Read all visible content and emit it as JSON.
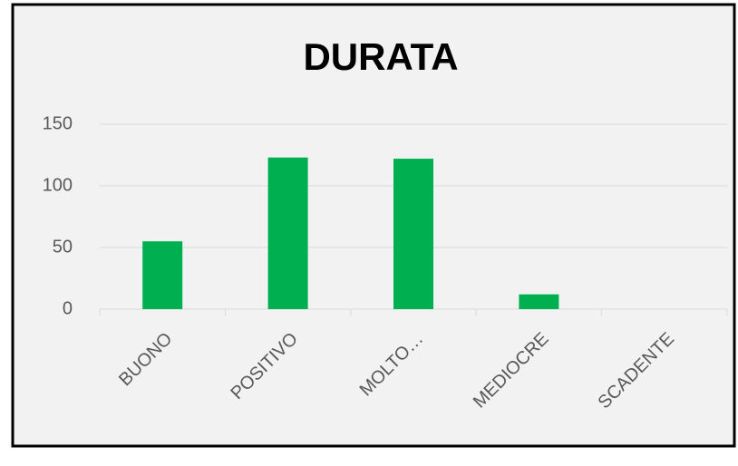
{
  "chart_data": {
    "type": "bar",
    "title": "DURATA",
    "categories": [
      "BUONO",
      "POSITIVO",
      "MOLTO…",
      "MEDIOCRE",
      "SCADENTE"
    ],
    "values": [
      55,
      123,
      122,
      12,
      0
    ],
    "color": "#00b050",
    "ylim": [
      0,
      150
    ],
    "yticks": [
      0,
      50,
      100,
      150
    ],
    "grid": true
  }
}
